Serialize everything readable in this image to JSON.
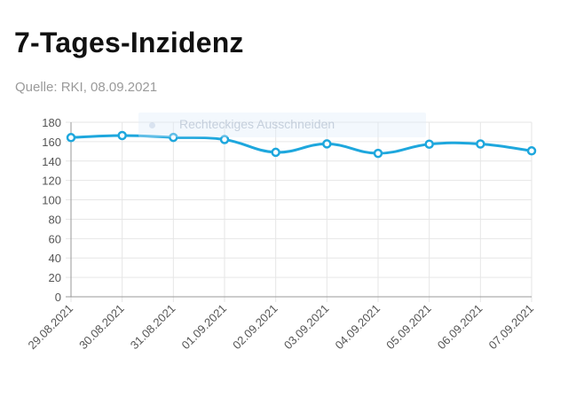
{
  "header": {
    "title": "7-Tages-Inzidenz",
    "source": "Quelle: RKI, 08.09.2021"
  },
  "overlay": {
    "label": "Rechteckiges Ausschneiden"
  },
  "colors": {
    "line": "#1ea7dd",
    "grid": "#e6e6e6",
    "axis": "#999999"
  },
  "chart_data": {
    "type": "line",
    "title": "7-Tages-Inzidenz",
    "categories": [
      "29.08.2021",
      "30.08.2021",
      "31.08.2021",
      "01.09.2021",
      "02.09.2021",
      "03.09.2021",
      "04.09.2021",
      "05.09.2021",
      "06.09.2021",
      "07.09.2021"
    ],
    "series": [
      {
        "values": [
          164.2,
          166.3,
          164.4,
          162.2,
          149.0,
          157.7,
          147.9,
          157.4,
          157.6,
          150.5
        ]
      }
    ],
    "yticks": [
      0,
      20,
      40,
      60,
      80,
      100,
      120,
      140,
      160,
      180
    ],
    "ylim": [
      0,
      180
    ],
    "grid": true,
    "legend": "none",
    "xlabel": "",
    "ylabel": ""
  }
}
